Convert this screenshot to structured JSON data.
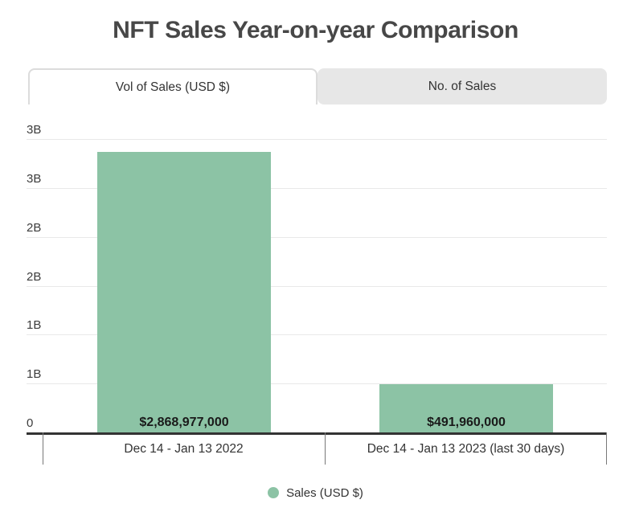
{
  "title": "NFT Sales Year-on-year Comparison",
  "tabs": {
    "vol": {
      "label": "Vol of Sales (USD $)",
      "active": true
    },
    "num": {
      "label": "No. of Sales",
      "active": false
    }
  },
  "legend": {
    "label": "Sales (USD $)"
  },
  "colors": {
    "bar": "#8cc3a5",
    "gridline": "#e9e9e9",
    "axis": "#333333",
    "title_text": "#474747",
    "inactive_tab_bg": "#e7e7e7",
    "active_tab_border": "#dcdcdc"
  },
  "chart_data": {
    "type": "bar",
    "title": "NFT Sales Year-on-year Comparison",
    "categories": [
      "Dec 14 - Jan 13 2022",
      "Dec 14 - Jan 13 2023 (last 30 days)"
    ],
    "series": [
      {
        "name": "Sales (USD $)",
        "values": [
          2868977000,
          491960000
        ]
      }
    ],
    "value_labels": [
      "$2,868,977,000",
      "$491,960,000"
    ],
    "xlabel": "",
    "ylabel": "",
    "ylim": [
      0,
      3000000000
    ],
    "y_ticks": [
      {
        "value": 0,
        "label": "0"
      },
      {
        "value": 500000000,
        "label": "1B"
      },
      {
        "value": 1000000000,
        "label": "1B"
      },
      {
        "value": 1500000000,
        "label": "2B"
      },
      {
        "value": 2000000000,
        "label": "2B"
      },
      {
        "value": 2500000000,
        "label": "3B"
      },
      {
        "value": 3000000000,
        "label": "3B"
      }
    ],
    "grid": true,
    "legend_position": "bottom",
    "bar_color": "#8cc3a5"
  }
}
